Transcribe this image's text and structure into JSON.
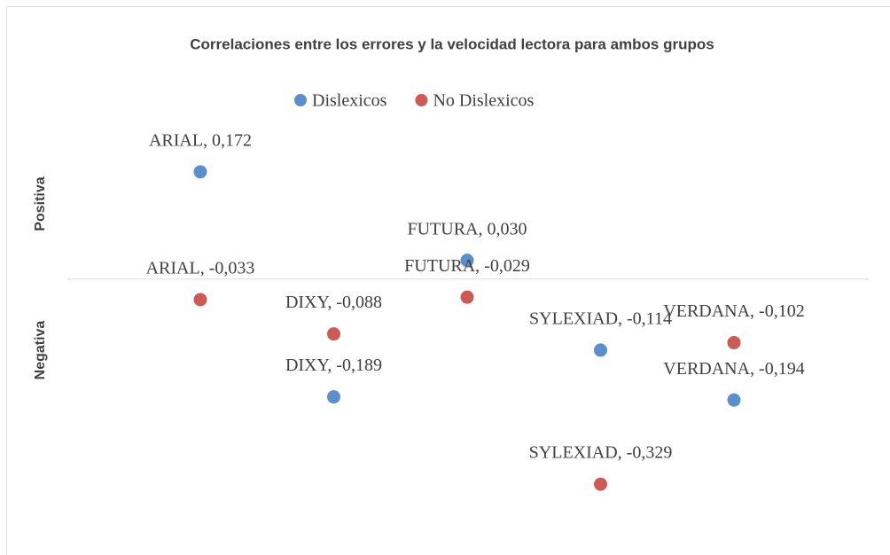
{
  "chart_data": {
    "type": "scatter",
    "title": "Correlaciones entre los errores y la velocidad lectora para ambos grupos",
    "annotations": [
      "Positiva",
      "Negativa"
    ],
    "x": [
      1,
      2,
      3,
      4,
      5
    ],
    "xlim": [
      0,
      6
    ],
    "ylim": [
      -0.4,
      0.25
    ],
    "series": [
      {
        "name": "Dislexicos",
        "color": "#5b8fcb",
        "values": [
          0.172,
          -0.189,
          0.03,
          -0.114,
          -0.194
        ],
        "value_labels": [
          "ARIAL, 0,172",
          "DIXY, -0,189",
          "FUTURA, 0,030",
          "SYLEXIAD, -0,114",
          "VERDANA, -0,194"
        ]
      },
      {
        "name": "No Dislexicos",
        "color": "#cc5a55",
        "values": [
          -0.033,
          -0.088,
          -0.029,
          -0.329,
          -0.102
        ],
        "value_labels": [
          "ARIAL, -0,033",
          "DIXY, -0,088",
          "FUTURA, -0,029",
          "SYLEXIAD, -0,329",
          "VERDANA, -0,102"
        ]
      }
    ],
    "legend": "top"
  }
}
